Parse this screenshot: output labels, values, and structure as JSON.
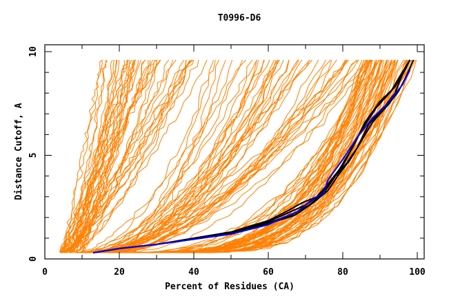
{
  "chart_data": {
    "type": "line",
    "title": "T0996-D6",
    "xlabel": "Percent of Residues (CA)",
    "ylabel": "Distance Cutoff, A",
    "xlim": [
      0,
      100
    ],
    "ylim": [
      0,
      10
    ],
    "x_ticks": [
      0,
      20,
      40,
      60,
      80,
      100
    ],
    "x_tick_labels": [
      "0",
      "20",
      "40",
      "60",
      "80",
      "100"
    ],
    "y_ticks": [
      0,
      5,
      10
    ],
    "y_tick_labels": [
      "0",
      "5",
      "10"
    ],
    "grid": false,
    "legend": "none",
    "colors": {
      "models": "#ff8000",
      "highlight": "#000000",
      "reference": "#0000ff"
    },
    "model_curve_family": {
      "description": "Orange GDT curves for ~150 models; each series from start x (percent) at y=0.3 to end x at y=9.6",
      "y_start": 0.3,
      "y_end": 9.6,
      "groups": [
        {
          "name": "poor-models",
          "count": 45,
          "x_start_range": [
            4,
            10
          ],
          "x_end_range": [
            15,
            45
          ],
          "shape_range": [
            0.8,
            1.6
          ]
        },
        {
          "name": "medium-models",
          "count": 45,
          "x_start_range": [
            8,
            20
          ],
          "x_end_range": [
            45,
            90
          ],
          "shape_range": [
            1.4,
            2.4
          ]
        },
        {
          "name": "good-models",
          "count": 60,
          "x_start_range": [
            20,
            40
          ],
          "x_end_range": [
            85,
            100
          ],
          "shape_range": [
            2.4,
            4.0
          ]
        }
      ]
    },
    "series": [
      {
        "name": "highlight-1",
        "color": "#000000",
        "x": [
          13,
          20,
          30,
          40,
          50,
          60,
          65,
          70,
          74,
          77,
          80,
          83,
          86,
          90,
          94,
          97,
          98
        ],
        "y": [
          0.3,
          0.5,
          0.7,
          1.0,
          1.3,
          1.8,
          2.2,
          2.6,
          3.1,
          3.8,
          4.5,
          5.5,
          6.6,
          7.6,
          8.3,
          9.2,
          9.6
        ]
      },
      {
        "name": "highlight-2",
        "color": "#000000",
        "x": [
          13,
          20,
          30,
          40,
          50,
          60,
          66,
          71,
          75,
          78,
          81,
          84,
          87,
          91,
          94,
          96,
          98
        ],
        "y": [
          0.3,
          0.5,
          0.7,
          0.95,
          1.25,
          1.75,
          2.1,
          2.6,
          3.2,
          4.0,
          4.6,
          5.4,
          6.5,
          7.3,
          8.0,
          8.9,
          9.6
        ]
      },
      {
        "name": "highlight-3",
        "color": "#000000",
        "x": [
          13,
          20,
          30,
          40,
          50,
          60,
          67,
          72,
          76,
          79,
          82,
          85,
          88,
          92,
          95,
          97,
          99
        ],
        "y": [
          0.3,
          0.5,
          0.7,
          0.95,
          1.2,
          1.7,
          2.1,
          2.7,
          3.3,
          4.1,
          4.8,
          5.7,
          6.6,
          7.4,
          8.1,
          8.8,
          9.6
        ]
      },
      {
        "name": "highlight-4",
        "color": "#000000",
        "x": [
          13,
          20,
          30,
          40,
          50,
          60,
          65,
          69,
          73,
          76,
          79,
          82,
          85,
          89,
          93,
          96,
          98
        ],
        "y": [
          0.3,
          0.5,
          0.7,
          1.0,
          1.3,
          1.85,
          2.3,
          2.7,
          3.0,
          3.6,
          4.3,
          5.2,
          6.2,
          7.3,
          8.1,
          9.0,
          9.6
        ]
      },
      {
        "name": "reference",
        "color": "#0000ff",
        "x": [
          13,
          20,
          30,
          40,
          50,
          60,
          64,
          68,
          72,
          75,
          76,
          78,
          80,
          84,
          88,
          92,
          96,
          98
        ],
        "y": [
          0.3,
          0.5,
          0.7,
          0.95,
          1.2,
          1.65,
          2.0,
          2.3,
          2.9,
          3.2,
          3.8,
          4.3,
          4.8,
          5.9,
          6.8,
          7.5,
          8.4,
          9.1
        ]
      }
    ]
  }
}
